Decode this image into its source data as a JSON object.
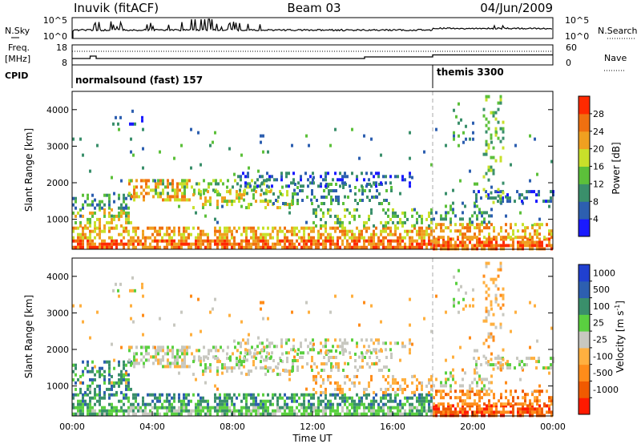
{
  "header": {
    "site": "Inuvik (fitACF)",
    "beam": "Beam 03",
    "date": "04/Jun/2009"
  },
  "colors": {
    "power_scale": [
      "#1a1aff",
      "#2d5fb0",
      "#3a8f6b",
      "#5cc03a",
      "#c8e02a",
      "#f0a020",
      "#f07010",
      "#ff2a00"
    ],
    "velocity_scale": [
      "#ff1a00",
      "#f05a00",
      "#ff8c1a",
      "#ffb040",
      "#c8c8c0",
      "#5ad040",
      "#3a8f6b",
      "#2d5fb0",
      "#2040d0"
    ]
  },
  "chart_data": [
    {
      "type": "line",
      "id": "nsky-panel",
      "left_label": "N.Sky",
      "right_label": "N.Search",
      "left_ticks": [
        "10^5",
        "10^0"
      ],
      "right_ticks": [
        "10^5",
        "10^0"
      ],
      "xlim": [
        "00:00",
        "24:00"
      ]
    },
    {
      "type": "line",
      "id": "freq-panel",
      "left_label_1": "Freq.",
      "left_label_2": "[MHz]",
      "right_label": "Nave",
      "left_ticks": [
        18,
        8
      ],
      "right_ticks": [
        60,
        0
      ],
      "series": [
        {
          "name": "Freq.",
          "x": [
            0,
            0.2,
            0.9,
            1.2,
            14.3,
            14.6,
            18.0,
            24.0
          ],
          "y": [
            11.2,
            11.2,
            12.4,
            11.2,
            11.2,
            12.0,
            13.0,
            13.0
          ]
        },
        {
          "name": "Nave",
          "x": [
            0,
            24
          ],
          "y": [
            44,
            44
          ]
        }
      ]
    },
    {
      "type": "table",
      "id": "cpid-panel",
      "label": "CPID",
      "segments": [
        {
          "start": 0,
          "end": 18.0,
          "text": "normalsound (fast) 157"
        },
        {
          "start": 18.0,
          "end": 24.0,
          "text": "themis 3300"
        }
      ]
    },
    {
      "type": "heatmap",
      "id": "power-panel",
      "ylabel": "Slant Range [km]",
      "yticks": [
        1000,
        2000,
        3000,
        4000
      ],
      "ylim": [
        180,
        4500
      ],
      "xlim": [
        0,
        24
      ],
      "colorbar_label": "Power [dB]",
      "colorbar_ticks": [
        4,
        8,
        12,
        16,
        20,
        24,
        28
      ],
      "colorbar_range": [
        0,
        32
      ]
    },
    {
      "type": "heatmap",
      "id": "velocity-panel",
      "ylabel": "Slant Range [km]",
      "yticks": [
        1000,
        2000,
        3000,
        4000
      ],
      "ylim": [
        180,
        4500
      ],
      "xlim": [
        0,
        24
      ],
      "xticks": [
        "00:00",
        "04:00",
        "08:00",
        "12:00",
        "16:00",
        "20:00",
        "00:00"
      ],
      "xlabel": "Time UT",
      "colorbar_label": "Velocity [m s^-1]",
      "colorbar_ticks": [
        "1000",
        "500",
        "100",
        "25",
        "-25",
        "-100",
        "-500",
        "-1000"
      ]
    }
  ]
}
